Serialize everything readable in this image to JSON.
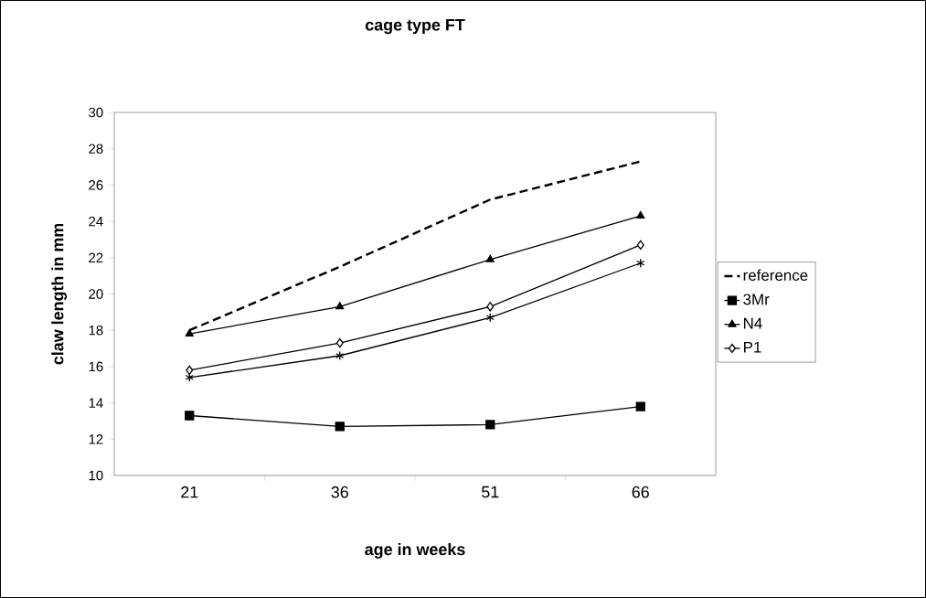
{
  "chart_data": {
    "type": "line",
    "title": "cage type FT",
    "xlabel": "age in weeks",
    "ylabel": "claw length in mm",
    "categories": [
      "21",
      "36",
      "51",
      "66"
    ],
    "series": [
      {
        "name": "reference",
        "color": "#000000",
        "values": [
          18.0,
          21.5,
          25.2,
          27.3
        ],
        "marker": "none",
        "line_style": "dashed"
      },
      {
        "name": "3Mr",
        "color": "#000000",
        "values": [
          13.3,
          12.7,
          12.8,
          13.8
        ],
        "marker": "square",
        "line_style": "solid"
      },
      {
        "name": "N4",
        "color": "#000000",
        "values": [
          17.8,
          19.3,
          21.9,
          24.3
        ],
        "marker": "triangle",
        "line_style": "solid"
      },
      {
        "name": "P1",
        "color": "#000000",
        "values": [
          15.8,
          17.3,
          19.3,
          22.7
        ],
        "marker": "diamond",
        "line_style": "solid"
      },
      {
        "color": "#000000",
        "values": [
          15.4,
          16.6,
          18.7,
          21.7
        ],
        "marker": "cross",
        "line_style": "solid"
      }
    ],
    "ylim": [
      10,
      30
    ],
    "yticks": [
      10,
      12,
      14,
      16,
      18,
      20,
      22,
      24,
      26,
      28,
      30
    ],
    "legend": "right"
  }
}
